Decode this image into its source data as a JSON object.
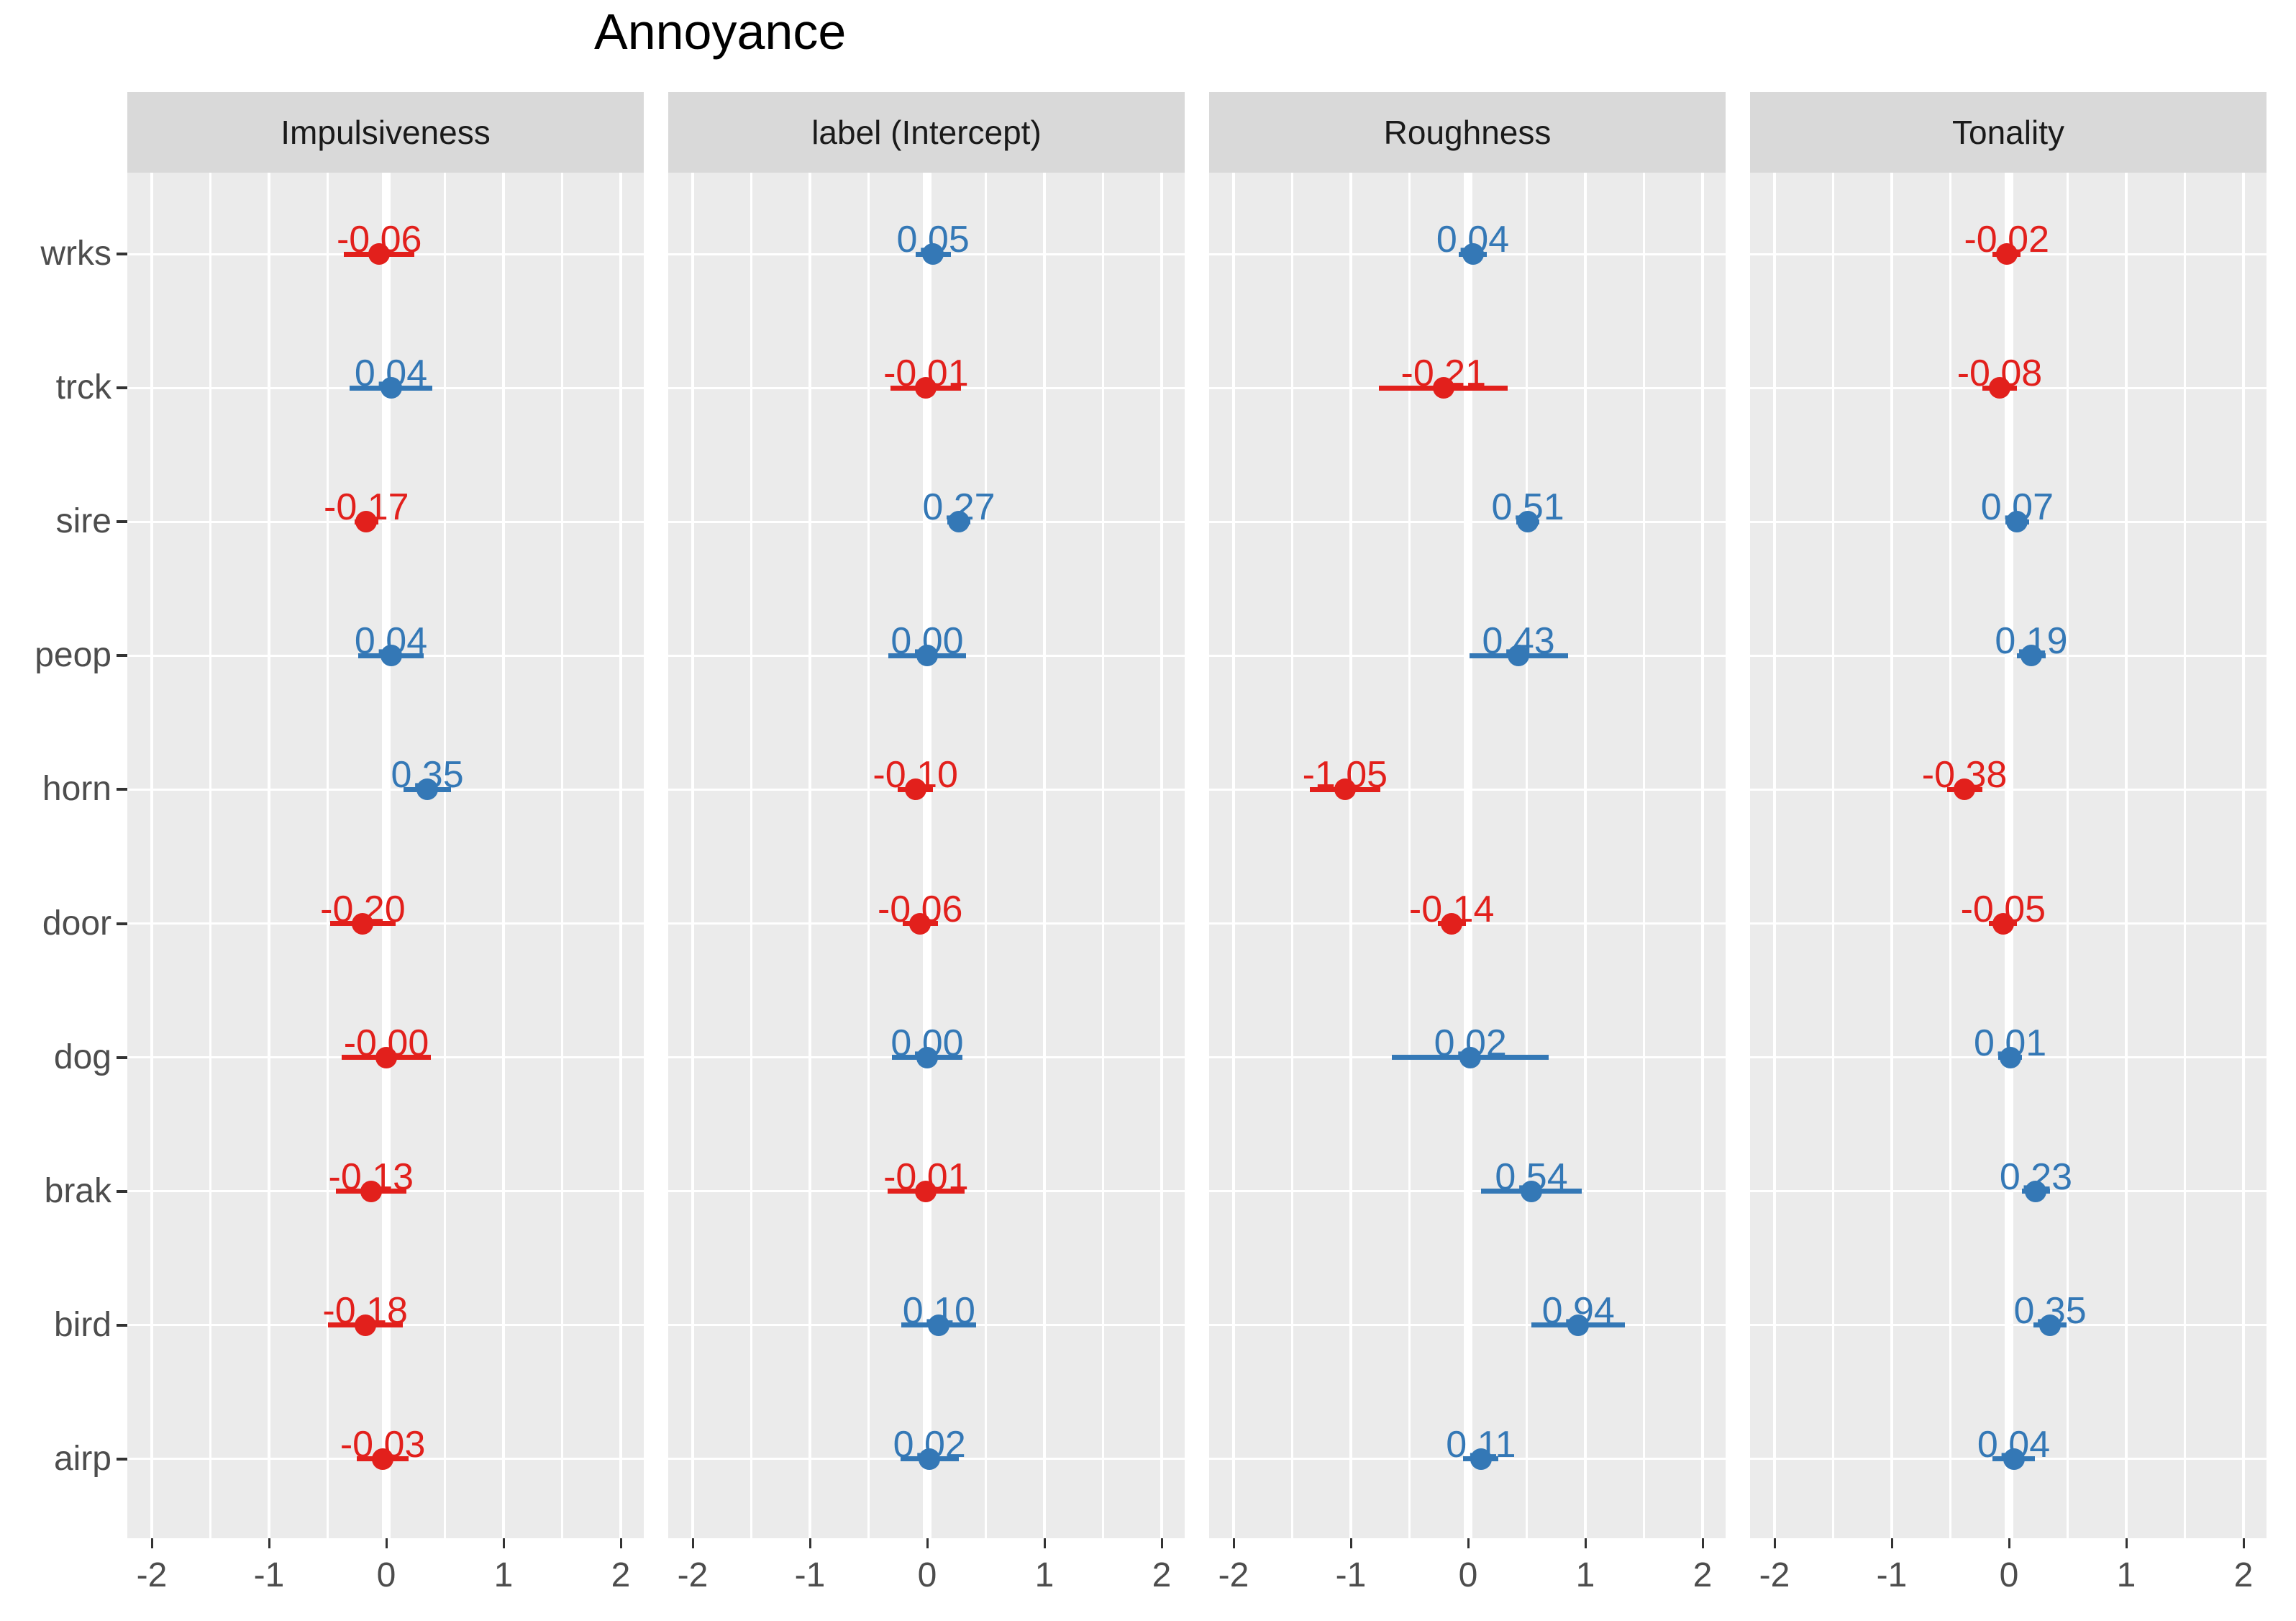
{
  "title": "Annoyance",
  "colors": {
    "positive": "#3478b6",
    "negative": "#e2201c",
    "panel_bg": "#ebebeb",
    "strip_bg": "#d9d9d9",
    "gridline": "#ffffff",
    "axis_text": "#4d4d4d",
    "strip_text": "#1a1a1a",
    "tick_mark": "#333333",
    "title_text": "#000000"
  },
  "chart_data": {
    "type": "scatter",
    "title": "Annoyance",
    "subtitle": "",
    "xlabel": "",
    "ylabel": "",
    "x_ticks": [
      -2,
      -1,
      0,
      1,
      2
    ],
    "x_minor_ticks": [
      -1.5,
      -0.5,
      0.5,
      1.5
    ],
    "xlim": [
      -2.2,
      2.2
    ],
    "grid": "on",
    "legend_position": "none",
    "categories": [
      "wrks",
      "trck",
      "sire",
      "peop",
      "horn",
      "door",
      "dog",
      "brak",
      "bird",
      "airp"
    ],
    "facets": [
      {
        "label": "Impulsiveness",
        "points": [
          {
            "category": "wrks",
            "value": -0.06,
            "label": "-0.06",
            "ci_low": -0.36,
            "ci_high": 0.24
          },
          {
            "category": "trck",
            "value": 0.04,
            "label": "0.04",
            "ci_low": -0.31,
            "ci_high": 0.39
          },
          {
            "category": "sire",
            "value": -0.17,
            "label": "-0.17",
            "ci_low": -0.27,
            "ci_high": -0.07
          },
          {
            "category": "peop",
            "value": 0.04,
            "label": "0.04",
            "ci_low": -0.24,
            "ci_high": 0.32
          },
          {
            "category": "horn",
            "value": 0.35,
            "label": "0.35",
            "ci_low": 0.15,
            "ci_high": 0.55
          },
          {
            "category": "door",
            "value": -0.2,
            "label": "-0.20",
            "ci_low": -0.48,
            "ci_high": 0.08
          },
          {
            "category": "dog",
            "value": -0.0,
            "label": "-0.00",
            "ci_low": -0.38,
            "ci_high": 0.38
          },
          {
            "category": "brak",
            "value": -0.13,
            "label": "-0.13",
            "ci_low": -0.43,
            "ci_high": 0.17
          },
          {
            "category": "bird",
            "value": -0.18,
            "label": "-0.18",
            "ci_low": -0.5,
            "ci_high": 0.14
          },
          {
            "category": "airp",
            "value": -0.03,
            "label": "-0.03",
            "ci_low": -0.25,
            "ci_high": 0.19
          }
        ]
      },
      {
        "label": "label (Intercept)",
        "points": [
          {
            "category": "wrks",
            "value": 0.05,
            "label": "0.05",
            "ci_low": -0.1,
            "ci_high": 0.2
          },
          {
            "category": "trck",
            "value": -0.01,
            "label": "-0.01",
            "ci_low": -0.31,
            "ci_high": 0.29
          },
          {
            "category": "sire",
            "value": 0.27,
            "label": "0.27",
            "ci_low": 0.17,
            "ci_high": 0.37
          },
          {
            "category": "peop",
            "value": 0.0,
            "label": "0.00",
            "ci_low": -0.33,
            "ci_high": 0.33
          },
          {
            "category": "horn",
            "value": -0.1,
            "label": "-0.10",
            "ci_low": -0.25,
            "ci_high": 0.05
          },
          {
            "category": "door",
            "value": -0.06,
            "label": "-0.06",
            "ci_low": -0.21,
            "ci_high": 0.09
          },
          {
            "category": "dog",
            "value": 0.0,
            "label": "0.00",
            "ci_low": -0.3,
            "ci_high": 0.3
          },
          {
            "category": "brak",
            "value": -0.01,
            "label": "-0.01",
            "ci_low": -0.34,
            "ci_high": 0.32
          },
          {
            "category": "bird",
            "value": 0.1,
            "label": "0.10",
            "ci_low": -0.22,
            "ci_high": 0.42
          },
          {
            "category": "airp",
            "value": 0.02,
            "label": "0.02",
            "ci_low": -0.23,
            "ci_high": 0.27
          }
        ]
      },
      {
        "label": "Roughness",
        "points": [
          {
            "category": "wrks",
            "value": 0.04,
            "label": "0.04",
            "ci_low": -0.08,
            "ci_high": 0.16
          },
          {
            "category": "trck",
            "value": -0.21,
            "label": "-0.21",
            "ci_low": -0.76,
            "ci_high": 0.34
          },
          {
            "category": "sire",
            "value": 0.51,
            "label": "0.51",
            "ci_low": 0.41,
            "ci_high": 0.61
          },
          {
            "category": "peop",
            "value": 0.43,
            "label": "0.43",
            "ci_low": 0.01,
            "ci_high": 0.85
          },
          {
            "category": "horn",
            "value": -1.05,
            "label": "-1.05",
            "ci_low": -1.35,
            "ci_high": -0.75
          },
          {
            "category": "door",
            "value": -0.14,
            "label": "-0.14",
            "ci_low": -0.26,
            "ci_high": -0.02
          },
          {
            "category": "dog",
            "value": 0.02,
            "label": "0.02",
            "ci_low": -0.65,
            "ci_high": 0.69
          },
          {
            "category": "brak",
            "value": 0.54,
            "label": "0.54",
            "ci_low": 0.11,
            "ci_high": 0.97
          },
          {
            "category": "bird",
            "value": 0.94,
            "label": "0.94",
            "ci_low": 0.54,
            "ci_high": 1.34
          },
          {
            "category": "airp",
            "value": 0.11,
            "label": "0.11",
            "ci_low": -0.04,
            "ci_high": 0.26
          }
        ]
      },
      {
        "label": "Tonality",
        "points": [
          {
            "category": "wrks",
            "value": -0.02,
            "label": "-0.02",
            "ci_low": -0.14,
            "ci_high": 0.1
          },
          {
            "category": "trck",
            "value": -0.08,
            "label": "-0.08",
            "ci_low": -0.23,
            "ci_high": 0.07
          },
          {
            "category": "sire",
            "value": 0.07,
            "label": "0.07",
            "ci_low": -0.03,
            "ci_high": 0.17
          },
          {
            "category": "peop",
            "value": 0.19,
            "label": "0.19",
            "ci_low": 0.07,
            "ci_high": 0.31
          },
          {
            "category": "horn",
            "value": -0.38,
            "label": "-0.38",
            "ci_low": -0.53,
            "ci_high": -0.23
          },
          {
            "category": "door",
            "value": -0.05,
            "label": "-0.05",
            "ci_low": -0.17,
            "ci_high": 0.07
          },
          {
            "category": "dog",
            "value": 0.01,
            "label": "0.01",
            "ci_low": -0.09,
            "ci_high": 0.11
          },
          {
            "category": "brak",
            "value": 0.23,
            "label": "0.23",
            "ci_low": 0.11,
            "ci_high": 0.35
          },
          {
            "category": "bird",
            "value": 0.35,
            "label": "0.35",
            "ci_low": 0.21,
            "ci_high": 0.49
          },
          {
            "category": "airp",
            "value": 0.04,
            "label": "0.04",
            "ci_low": -0.14,
            "ci_high": 0.22
          }
        ]
      }
    ]
  }
}
